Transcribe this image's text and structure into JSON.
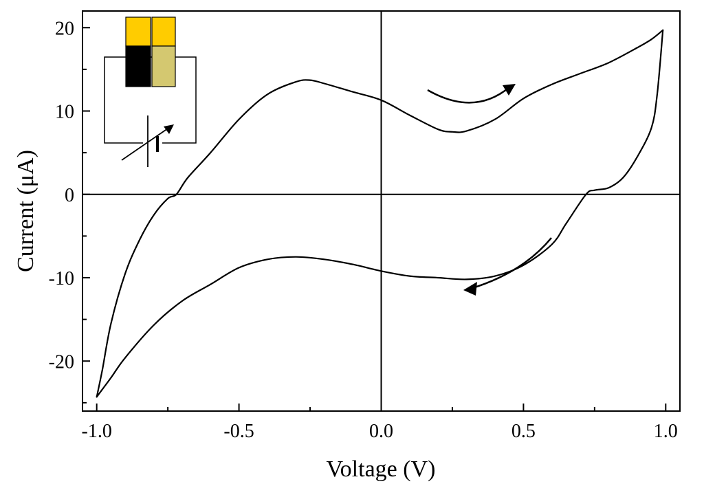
{
  "chart_data": {
    "type": "line",
    "title": "",
    "xlabel": "Voltage (V)",
    "ylabel": "Current (μA)",
    "xlim": [
      -1.05,
      1.05
    ],
    "ylim": [
      -26,
      22
    ],
    "x_ticks": [
      -1.0,
      -0.5,
      0.0,
      0.5,
      1.0
    ],
    "x_tick_labels": [
      "-1.0",
      "-0.5",
      "0.0",
      "0.5",
      "1.0"
    ],
    "y_ticks": [
      -20,
      -10,
      0,
      10,
      20
    ],
    "y_tick_labels": [
      "-20",
      "-10",
      "0",
      "10",
      "20"
    ],
    "grid": false,
    "zero_lines": true,
    "line_color": "#000000",
    "series": [
      {
        "x": [
          -1.0,
          -0.98,
          -0.95,
          -0.9,
          -0.85,
          -0.8,
          -0.75,
          -0.72,
          -0.68,
          -0.6,
          -0.5,
          -0.4,
          -0.3,
          -0.25,
          -0.2,
          -0.1,
          0.0,
          0.1,
          0.2,
          0.25,
          0.3,
          0.4,
          0.5,
          0.6,
          0.7,
          0.8,
          0.9,
          0.95,
          0.99
        ],
        "y": [
          -24.3,
          -21,
          -15.5,
          -9.5,
          -5.5,
          -2.5,
          -0.5,
          0,
          2,
          5,
          9,
          12,
          13.5,
          13.7,
          13.3,
          12.3,
          11.3,
          9.5,
          7.8,
          7.5,
          7.6,
          9,
          11.5,
          13.2,
          14.5,
          15.8,
          17.6,
          18.6,
          19.7
        ]
      },
      {
        "x": [
          0.99,
          0.97,
          0.95,
          0.9,
          0.85,
          0.8,
          0.75,
          0.72,
          0.65,
          0.6,
          0.5,
          0.4,
          0.3,
          0.2,
          0.1,
          0.0,
          -0.1,
          -0.2,
          -0.3,
          -0.4,
          -0.5,
          -0.6,
          -0.7,
          -0.8,
          -0.9,
          -0.95,
          -1.0
        ],
        "y": [
          19.7,
          12,
          8,
          4.5,
          2,
          0.8,
          0.5,
          0,
          -3.5,
          -6,
          -8.5,
          -9.8,
          -10.2,
          -10,
          -9.8,
          -9.2,
          -8.4,
          -7.8,
          -7.5,
          -7.8,
          -8.8,
          -10.8,
          -12.8,
          -15.7,
          -19.6,
          -22,
          -24.3
        ]
      }
    ]
  },
  "annotations": {
    "arrow_upper_color": "#000000",
    "arrow_lower_color": "#000000"
  },
  "inset": {
    "type": "electrochemical cell schematic",
    "electrode_top_color": "#FFCC00",
    "electrode_left_bottom_color": "#000000",
    "electrode_right_bottom_color": "#D4C870",
    "wire_color": "#000000"
  }
}
